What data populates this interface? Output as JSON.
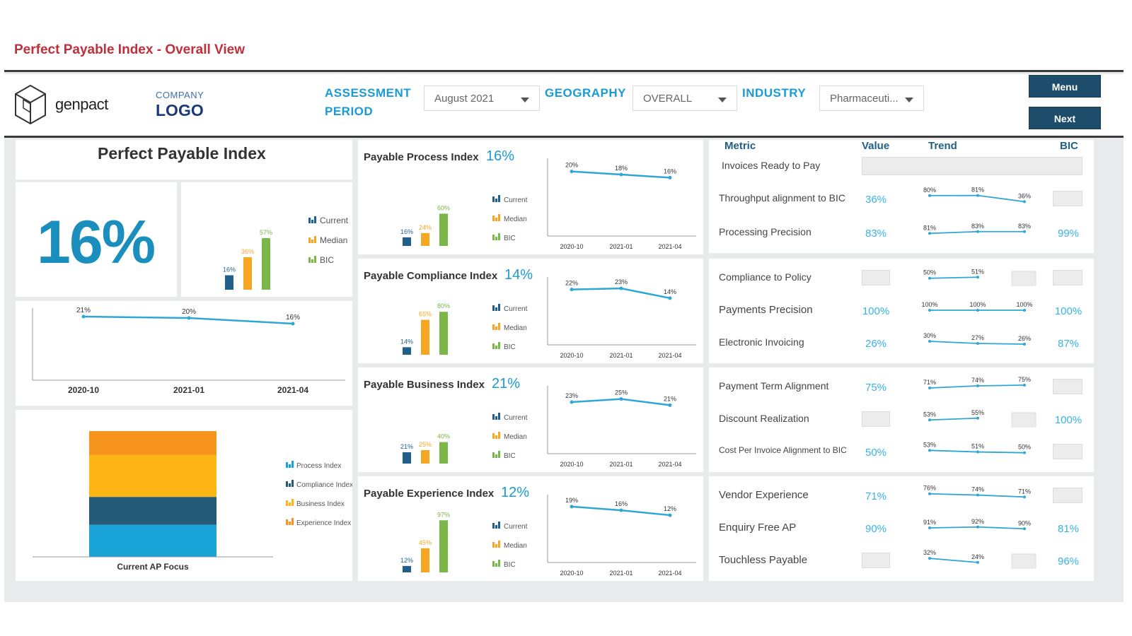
{
  "header": {
    "page_title": "Perfect Payable Index - Overall View",
    "brand": "genpact",
    "company_logo_top": "COMPANY",
    "company_logo_bottom": "LOGO",
    "assessment_label_1": "ASSESSMENT",
    "assessment_label_2": "PERIOD",
    "assessment_value": "August 2021",
    "geography_label": "GEOGRAPHY",
    "geography_value": "OVERALL",
    "industry_label": "INDUSTRY",
    "industry_value": "Pharmaceuti...",
    "menu_label": "Menu",
    "next_label": "Next"
  },
  "colors": {
    "current": "#1f5f8a",
    "median": "#f5a623",
    "bic": "#7ab648",
    "trend": "#2fa7d6",
    "big": "#1a8fbd",
    "stack_orange": "#f7941d",
    "stack_yellow": "#fdb515",
    "stack_dark": "#235a78",
    "stack_blue": "#1aa3d6"
  },
  "left": {
    "title": "Perfect Payable Index",
    "value": "16%",
    "legend": [
      "Current",
      "Median",
      "BIC"
    ],
    "stack_legend": [
      "Process Index",
      "Compliance Index",
      "Business Index",
      "Experience Index"
    ],
    "stack_xlabel": "Current AP Focus"
  },
  "chart_data": [
    {
      "type": "bar",
      "id": "ppi-bars",
      "categories": [
        "Current",
        "Median",
        "BIC"
      ],
      "values": [
        16,
        36,
        57
      ],
      "labels": [
        "16%",
        "36%",
        "57%"
      ]
    },
    {
      "type": "line",
      "id": "ppi-trend",
      "x": [
        "2020-10",
        "2021-01",
        "2021-04"
      ],
      "values": [
        21,
        20,
        16
      ],
      "labels": [
        "21%",
        "20%",
        "16%"
      ]
    },
    {
      "type": "bar",
      "id": "stack",
      "stacked": true,
      "categories": [
        "Current AP Focus"
      ],
      "series": [
        {
          "name": "Experience Index",
          "values": [
            12
          ]
        },
        {
          "name": "Business Index",
          "values": [
            21
          ]
        },
        {
          "name": "Compliance Index",
          "values": [
            14
          ]
        },
        {
          "name": "Process Index",
          "values": [
            16
          ]
        }
      ]
    },
    {
      "type": "bar",
      "id": "process-bars",
      "categories": [
        "Current",
        "Median",
        "BIC"
      ],
      "values": [
        16,
        24,
        60
      ],
      "labels": [
        "16%",
        "24%",
        "60%"
      ]
    },
    {
      "type": "line",
      "id": "process-trend",
      "x": [
        "2020-10",
        "2021-01",
        "2021-04"
      ],
      "values": [
        20,
        18,
        16
      ],
      "labels": [
        "20%",
        "18%",
        "16%"
      ]
    },
    {
      "type": "bar",
      "id": "compliance-bars",
      "categories": [
        "Current",
        "Median",
        "BIC"
      ],
      "values": [
        14,
        65,
        80
      ],
      "labels": [
        "14%",
        "65%",
        "80%"
      ]
    },
    {
      "type": "line",
      "id": "compliance-trend",
      "x": [
        "2020-10",
        "2021-01",
        "2021-04"
      ],
      "values": [
        22,
        23,
        14
      ],
      "labels": [
        "22%",
        "23%",
        "14%"
      ]
    },
    {
      "type": "bar",
      "id": "business-bars",
      "categories": [
        "Current",
        "Median",
        "BIC"
      ],
      "values": [
        21,
        25,
        40
      ],
      "labels": [
        "21%",
        "25%",
        "40%"
      ]
    },
    {
      "type": "line",
      "id": "business-trend",
      "x": [
        "2020-10",
        "2021-01",
        "2021-04"
      ],
      "values": [
        23,
        25,
        21
      ],
      "labels": [
        "23%",
        "25%",
        "21%"
      ]
    },
    {
      "type": "bar",
      "id": "experience-bars",
      "categories": [
        "Current",
        "Median",
        "BIC"
      ],
      "values": [
        12,
        45,
        97
      ],
      "labels": [
        "12%",
        "45%",
        "97%"
      ]
    },
    {
      "type": "line",
      "id": "experience-trend",
      "x": [
        "2020-10",
        "2021-01",
        "2021-04"
      ],
      "values": [
        19,
        16,
        12
      ],
      "labels": [
        "19%",
        "16%",
        "12%"
      ]
    }
  ],
  "indices": [
    {
      "title": "Payable Process Index",
      "pct": "16%",
      "legend": [
        "Current",
        "Median",
        "BIC"
      ]
    },
    {
      "title": "Payable Compliance Index",
      "pct": "14%",
      "legend": [
        "Current",
        "Median",
        "BIC"
      ]
    },
    {
      "title": "Payable Business Index",
      "pct": "21%",
      "legend": [
        "Current",
        "Median",
        "BIC"
      ]
    },
    {
      "title": "Payable Experience Index",
      "pct": "12%",
      "legend": [
        "Current",
        "Median",
        "BIC"
      ]
    }
  ],
  "metrics": {
    "headers": [
      "Metric",
      "Value",
      "Trend",
      "BIC"
    ],
    "rows": [
      {
        "name": "Invoices Ready to Pay",
        "value": "",
        "bic": "",
        "trend": []
      },
      {
        "name": "Throughput alignment to BIC",
        "value": "36%",
        "bic": "",
        "trend": [
          80,
          81,
          36
        ],
        "trend_labels": [
          "80%",
          "81%",
          "36%"
        ]
      },
      {
        "name": "Processing Precision",
        "value": "83%",
        "bic": "99%",
        "trend": [
          81,
          83,
          83
        ],
        "trend_labels": [
          "81%",
          "83%",
          "83%"
        ]
      },
      {
        "name": "Compliance to Policy",
        "value": "",
        "bic": "",
        "trend": [
          50,
          51
        ],
        "trend_labels": [
          "50%",
          "51%"
        ]
      },
      {
        "name": "Payments Precision",
        "value": "100%",
        "bic": "100%",
        "trend": [
          100,
          100,
          100
        ],
        "trend_labels": [
          "100%",
          "100%",
          "100%"
        ]
      },
      {
        "name": "Electronic Invoicing",
        "value": "26%",
        "bic": "87%",
        "trend": [
          30,
          27,
          26
        ],
        "trend_labels": [
          "30%",
          "27%",
          "26%"
        ]
      },
      {
        "name": "Payment Term Alignment",
        "value": "75%",
        "bic": "",
        "trend": [
          71,
          74,
          75
        ],
        "trend_labels": [
          "71%",
          "74%",
          "75%"
        ]
      },
      {
        "name": "Discount Realization",
        "value": "",
        "bic": "100%",
        "trend": [
          53,
          55
        ],
        "trend_labels": [
          "53%",
          "55%"
        ]
      },
      {
        "name": "Cost Per Invoice Alignment to BIC",
        "value": "50%",
        "bic": "",
        "trend": [
          53,
          51,
          50
        ],
        "trend_labels": [
          "53%",
          "51%",
          "50%"
        ]
      },
      {
        "name": "Vendor Experience",
        "value": "71%",
        "bic": "",
        "trend": [
          76,
          74,
          71
        ],
        "trend_labels": [
          "76%",
          "74%",
          "71%"
        ]
      },
      {
        "name": "Enquiry Free AP",
        "value": "90%",
        "bic": "81%",
        "trend": [
          91,
          92,
          90
        ],
        "trend_labels": [
          "91%",
          "92%",
          "90%"
        ]
      },
      {
        "name": "Touchless Payable",
        "value": "",
        "bic": "96%",
        "trend": [
          32,
          24
        ],
        "trend_labels": [
          "32%",
          "24%"
        ]
      }
    ]
  }
}
